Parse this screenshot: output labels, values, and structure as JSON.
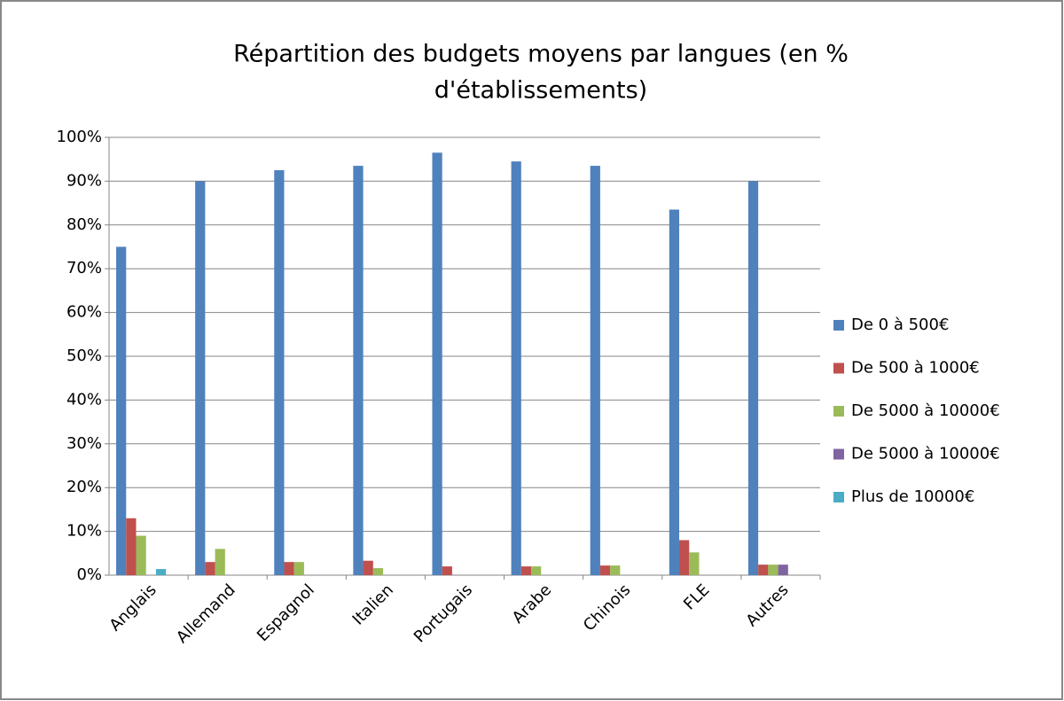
{
  "chart_data": {
    "type": "bar",
    "title": [
      "Répartition des budgets moyens par langues (en %",
      "d'établissements)"
    ],
    "categories": [
      "Anglais",
      "Allemand",
      "Espagnol",
      "Italien",
      "Portugais",
      "Arabe",
      "Chinois",
      "FLE",
      "Autres"
    ],
    "series": [
      {
        "name": "De 0 à 500€",
        "color": "#4f81bd",
        "values": [
          75,
          90,
          92.5,
          93.5,
          96.5,
          94.5,
          93.5,
          83.5,
          90
        ]
      },
      {
        "name": "De 500 à 1000€",
        "color": "#c0504d",
        "values": [
          13,
          3,
          3,
          3.3,
          2,
          2,
          2.2,
          8,
          2.4
        ]
      },
      {
        "name": "De 5000 à 10000€",
        "color": "#9bbb59",
        "values": [
          9,
          6,
          3,
          1.6,
          0,
          2,
          2.2,
          5.2,
          2.4
        ]
      },
      {
        "name": "De 5000 à 10000€",
        "color": "#8064a2",
        "values": [
          0,
          0,
          0,
          0,
          0,
          0,
          0,
          0,
          2.4
        ]
      },
      {
        "name": "Plus de 10000€",
        "color": "#4bacc6",
        "values": [
          1.4,
          0,
          0,
          0,
          0,
          0,
          0,
          0,
          0
        ]
      }
    ],
    "ylim": [
      0,
      100
    ],
    "yticks": [
      {
        "value": 0,
        "label": "0%"
      },
      {
        "value": 10,
        "label": "10%"
      },
      {
        "value": 20,
        "label": "20%"
      },
      {
        "value": 30,
        "label": "30%"
      },
      {
        "value": 40,
        "label": "40%"
      },
      {
        "value": 50,
        "label": "50%"
      },
      {
        "value": 60,
        "label": "60%"
      },
      {
        "value": 70,
        "label": "70%"
      },
      {
        "value": 80,
        "label": "80%"
      },
      {
        "value": 90,
        "label": "90%"
      },
      {
        "value": 100,
        "label": "100%"
      }
    ],
    "grid": true,
    "legend": "right"
  }
}
